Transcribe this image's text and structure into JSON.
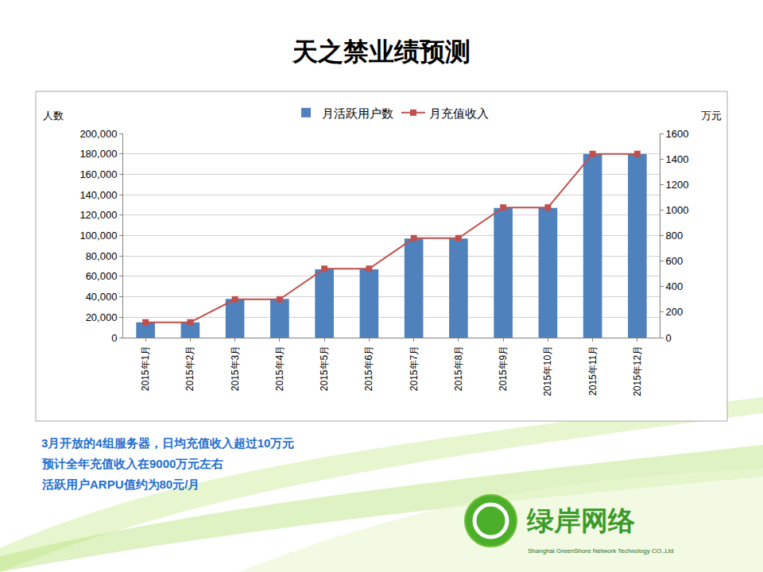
{
  "chart_data": {
    "type": "bar",
    "title": "天之禁业绩预测",
    "categories": [
      "2015年1月",
      "2015年2月",
      "2015年3月",
      "2015年4月",
      "2015年5月",
      "2015年6月",
      "2015年7月",
      "2015年8月",
      "2015年9月",
      "2015年10月",
      "2015年11月",
      "2015年12月"
    ],
    "series": [
      {
        "name": "月活跃用户数",
        "type": "bar",
        "color": "#4f81bd",
        "values": [
          15000,
          15000,
          38000,
          38000,
          67000,
          67000,
          97000,
          97000,
          127000,
          127000,
          180000,
          180000
        ]
      },
      {
        "name": "月充值收入",
        "type": "line",
        "axis": "y2",
        "color": "#c0504d",
        "marker": "square",
        "values": [
          120,
          120,
          300,
          300,
          540,
          540,
          780,
          780,
          1020,
          1020,
          1440,
          1440
        ]
      }
    ],
    "ylabel": "人数",
    "y2label": "万元",
    "ylim": [
      0,
      200000
    ],
    "yticks": [
      0,
      {
        "value": 20000,
        "label": "20,000"
      },
      {
        "value": 40000,
        "label": "40,000"
      },
      {
        "value": 60000,
        "label": "60,000"
      },
      {
        "value": 80000,
        "label": "80,000"
      },
      {
        "value": 100000,
        "label": "100,000"
      },
      {
        "value": 120000,
        "label": "120,000"
      },
      {
        "value": 140000,
        "label": "140,000"
      },
      {
        "value": 160000,
        "label": "160,000"
      },
      {
        "value": 180000,
        "label": "180,000"
      },
      {
        "value": 200000,
        "label": "200,000"
      }
    ],
    "y2lim": [
      0,
      1600
    ],
    "y2ticks": [
      0,
      200,
      400,
      600,
      800,
      1000,
      1200,
      1400,
      1600
    ],
    "grid": true,
    "legend": "top",
    "annotations": [
      "3月开放的4组服务器，日均充值收入超过10万元",
      "预计全年充值收入在9000万元左右",
      "活跃用户ARPU值约为80元/月",
      "绿岸网络",
      "Shanghai GreenShore Network Technology CO.,Ltd"
    ]
  }
}
